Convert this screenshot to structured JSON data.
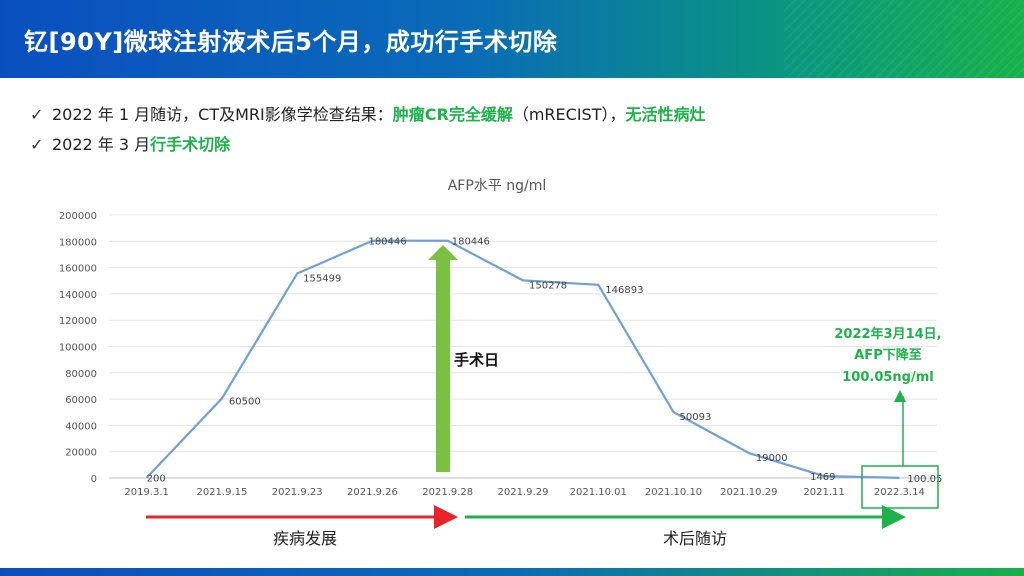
{
  "title": "钇[90Y]微球注射液术后5个月，成功行手术切除",
  "bullets": [
    {
      "check_icon": "✓",
      "text_1": "2022 年 1 月随访，CT及MRI影像学检查结果：",
      "highlight_1": "肿瘤CR完全缓解",
      "text_2": "（mRECIST），",
      "highlight_2": "无活性病灶"
    },
    {
      "check_icon": "✓",
      "text_1": "2022 年 3 月",
      "highlight_1": "行手术切除"
    }
  ],
  "chart_data": {
    "type": "line",
    "title": "AFP水平 ng/ml",
    "categories": [
      "2019.3.1",
      "2021.9.15",
      "2021.9.23",
      "2021.9.26",
      "2021.9.28",
      "2021.9.29",
      "2021.10.01",
      "2021.10.10",
      "2021.10.29",
      "2021.11",
      "2022.3.14"
    ],
    "values": [
      200,
      60500,
      155499,
      180446,
      180446,
      150278,
      146893,
      50093,
      19000,
      1469,
      100.05
    ],
    "data_labels": [
      "200",
      "60500",
      "155499",
      "180446",
      "180446",
      "150278",
      "146893",
      "50093",
      "19000",
      "1469",
      "100.05"
    ],
    "y_ticks": [
      0,
      20000,
      40000,
      60000,
      80000,
      100000,
      120000,
      140000,
      160000,
      180000,
      200000
    ],
    "ylim": [
      0,
      200000
    ],
    "grid": true,
    "line_color": "#6fa1d6",
    "annotations": {
      "surgery_label": "手术日",
      "surgery_arrow_color": "#7ac143",
      "callout_lines": [
        "2022年3月14日,",
        "AFP下降至",
        "100.05ng/ml"
      ],
      "callout_color": "#1db34a",
      "phase_before": "疾病发展",
      "phase_before_color": "#e8232a",
      "phase_after": "术后随访",
      "phase_after_color": "#1db34a"
    }
  }
}
